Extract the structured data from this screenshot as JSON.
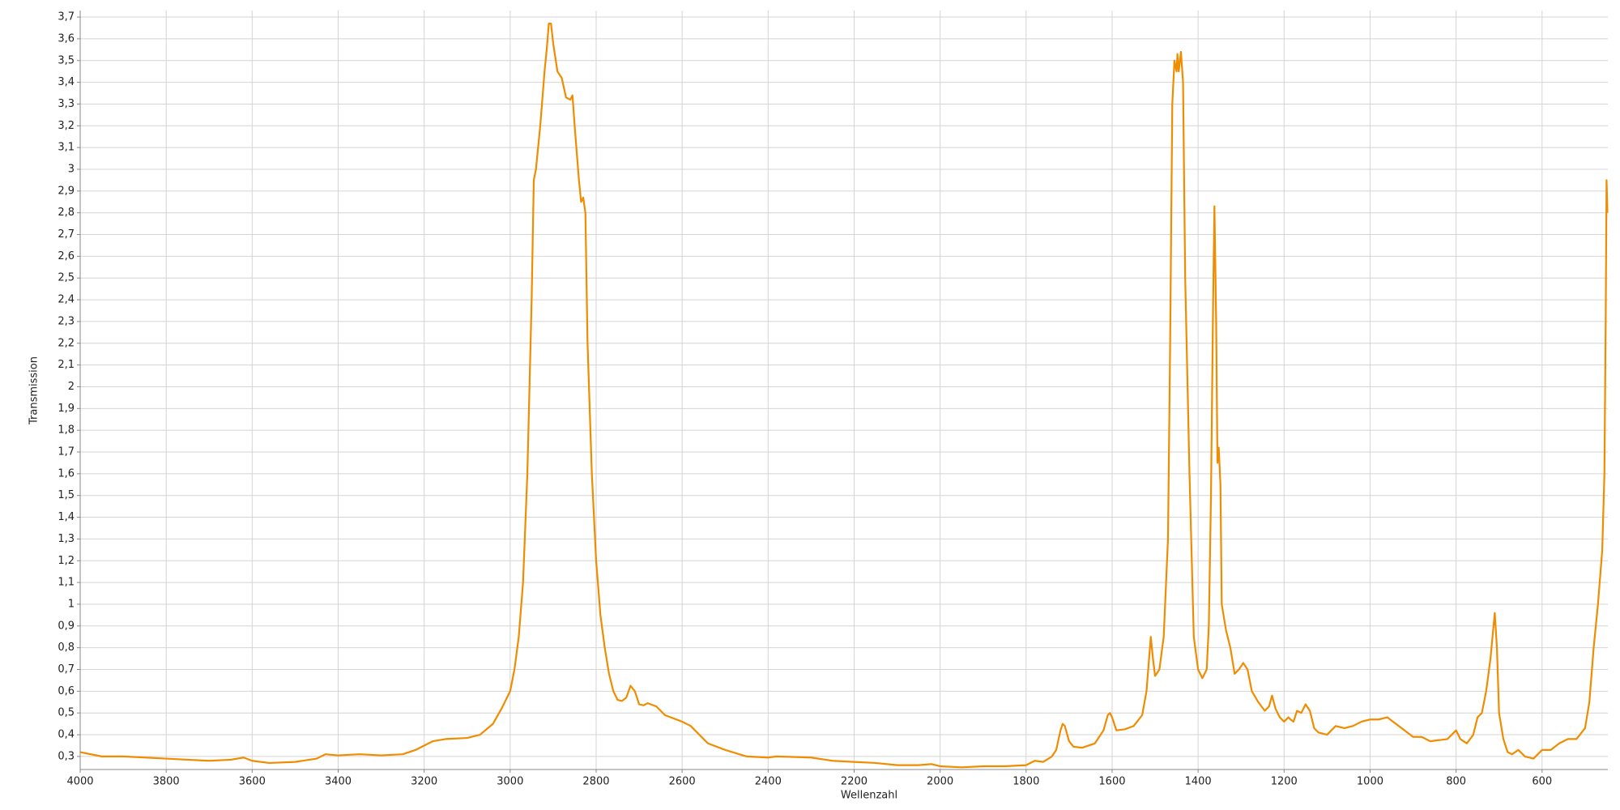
{
  "chart_data": {
    "type": "line",
    "x_label": "Wellenzahl",
    "y_label": "Transmission",
    "color": "#f08c00",
    "grid": true,
    "xlim": [
      4000,
      447
    ],
    "ylim": [
      0.24,
      3.73
    ],
    "xticks": [
      4000,
      3800,
      3600,
      3400,
      3200,
      3000,
      2800,
      2600,
      2400,
      2200,
      2000,
      1800,
      1600,
      1400,
      1200,
      1000,
      800,
      600
    ],
    "yticks": [
      {
        "value": 0.3,
        "label": "0,3"
      },
      {
        "value": 0.4,
        "label": "0,4"
      },
      {
        "value": 0.5,
        "label": "0,5"
      },
      {
        "value": 0.6,
        "label": "0,6"
      },
      {
        "value": 0.7,
        "label": "0,7"
      },
      {
        "value": 0.8,
        "label": "0,8"
      },
      {
        "value": 0.9,
        "label": "0,9"
      },
      1,
      {
        "value": 1.1,
        "label": "1,1"
      },
      {
        "value": 1.2,
        "label": "1,2"
      },
      {
        "value": 1.3,
        "label": "1,3"
      },
      {
        "value": 1.4,
        "label": "1,4"
      },
      {
        "value": 1.5,
        "label": "1,5"
      },
      {
        "value": 1.6,
        "label": "1,6"
      },
      {
        "value": 1.7,
        "label": "1,7"
      },
      {
        "value": 1.8,
        "label": "1,8"
      },
      {
        "value": 1.9,
        "label": "1,9"
      },
      2,
      {
        "value": 2.1,
        "label": "2,1"
      },
      {
        "value": 2.2,
        "label": "2,2"
      },
      {
        "value": 2.3,
        "label": "2,3"
      },
      {
        "value": 2.4,
        "label": "2,4"
      },
      {
        "value": 2.5,
        "label": "2,5"
      },
      {
        "value": 2.6,
        "label": "2,6"
      },
      {
        "value": 2.7,
        "label": "2,7"
      },
      {
        "value": 2.8,
        "label": "2,8"
      },
      {
        "value": 2.9,
        "label": "2,9"
      },
      3,
      {
        "value": 3.1,
        "label": "3,1"
      },
      {
        "value": 3.2,
        "label": "3,2"
      },
      {
        "value": 3.3,
        "label": "3,3"
      },
      {
        "value": 3.4,
        "label": "3,4"
      },
      {
        "value": 3.5,
        "label": "3,5"
      },
      {
        "value": 3.6,
        "label": "3,6"
      },
      {
        "value": 3.7,
        "label": "3,7"
      }
    ],
    "x": [
      4000,
      3950,
      3900,
      3800,
      3700,
      3650,
      3620,
      3600,
      3560,
      3500,
      3450,
      3430,
      3400,
      3350,
      3300,
      3250,
      3220,
      3180,
      3150,
      3100,
      3070,
      3040,
      3020,
      3000,
      2990,
      2980,
      2970,
      2960,
      2950,
      2945,
      2940,
      2930,
      2920,
      2915,
      2910,
      2905,
      2900,
      2890,
      2880,
      2870,
      2860,
      2855,
      2850,
      2840,
      2835,
      2830,
      2825,
      2820,
      2810,
      2800,
      2790,
      2780,
      2770,
      2760,
      2750,
      2740,
      2730,
      2720,
      2710,
      2700,
      2690,
      2680,
      2660,
      2640,
      2600,
      2580,
      2560,
      2540,
      2500,
      2450,
      2400,
      2380,
      2300,
      2250,
      2200,
      2150,
      2100,
      2050,
      2020,
      2000,
      1950,
      1900,
      1850,
      1800,
      1780,
      1760,
      1740,
      1730,
      1720,
      1715,
      1710,
      1700,
      1690,
      1670,
      1640,
      1620,
      1610,
      1605,
      1600,
      1590,
      1570,
      1550,
      1530,
      1520,
      1510,
      1505,
      1500,
      1490,
      1480,
      1470,
      1465,
      1460,
      1455,
      1450,
      1448,
      1445,
      1440,
      1435,
      1430,
      1420,
      1410,
      1400,
      1390,
      1380,
      1375,
      1370,
      1365,
      1362,
      1358,
      1355,
      1352,
      1348,
      1345,
      1335,
      1325,
      1315,
      1305,
      1295,
      1285,
      1275,
      1260,
      1245,
      1235,
      1228,
      1220,
      1210,
      1200,
      1190,
      1185,
      1178,
      1170,
      1160,
      1150,
      1140,
      1130,
      1120,
      1100,
      1080,
      1060,
      1040,
      1020,
      1000,
      980,
      960,
      940,
      920,
      900,
      880,
      860,
      840,
      820,
      800,
      790,
      775,
      760,
      750,
      740,
      730,
      720,
      710,
      705,
      700,
      690,
      680,
      670,
      655,
      640,
      620,
      600,
      580,
      560,
      540,
      520,
      500,
      490,
      480,
      470,
      460,
      455,
      452,
      450,
      448
    ],
    "values": [
      0.32,
      0.3,
      0.3,
      0.29,
      0.28,
      0.285,
      0.295,
      0.28,
      0.27,
      0.275,
      0.29,
      0.31,
      0.305,
      0.31,
      0.305,
      0.31,
      0.33,
      0.37,
      0.38,
      0.385,
      0.4,
      0.45,
      0.52,
      0.6,
      0.7,
      0.85,
      1.1,
      1.6,
      2.4,
      2.95,
      3.0,
      3.2,
      3.45,
      3.55,
      3.67,
      3.67,
      3.58,
      3.45,
      3.42,
      3.33,
      3.32,
      3.34,
      3.2,
      2.95,
      2.85,
      2.87,
      2.8,
      2.2,
      1.6,
      1.2,
      0.95,
      0.8,
      0.68,
      0.6,
      0.56,
      0.555,
      0.57,
      0.625,
      0.6,
      0.54,
      0.535,
      0.545,
      0.53,
      0.49,
      0.46,
      0.44,
      0.4,
      0.36,
      0.33,
      0.3,
      0.295,
      0.3,
      0.295,
      0.28,
      0.275,
      0.27,
      0.26,
      0.26,
      0.265,
      0.255,
      0.25,
      0.255,
      0.255,
      0.26,
      0.28,
      0.275,
      0.3,
      0.33,
      0.42,
      0.45,
      0.44,
      0.37,
      0.345,
      0.34,
      0.36,
      0.42,
      0.49,
      0.5,
      0.48,
      0.42,
      0.425,
      0.44,
      0.49,
      0.6,
      0.85,
      0.75,
      0.67,
      0.7,
      0.85,
      1.3,
      2.2,
      3.3,
      3.5,
      3.45,
      3.53,
      3.45,
      3.54,
      3.4,
      2.5,
      1.6,
      0.85,
      0.7,
      0.66,
      0.7,
      0.9,
      1.5,
      2.4,
      2.83,
      2.3,
      1.65,
      1.72,
      1.55,
      1.0,
      0.88,
      0.8,
      0.68,
      0.7,
      0.73,
      0.7,
      0.6,
      0.55,
      0.51,
      0.53,
      0.58,
      0.52,
      0.48,
      0.46,
      0.48,
      0.47,
      0.46,
      0.51,
      0.5,
      0.54,
      0.51,
      0.43,
      0.41,
      0.4,
      0.44,
      0.43,
      0.44,
      0.46,
      0.47,
      0.47,
      0.48,
      0.45,
      0.42,
      0.39,
      0.39,
      0.37,
      0.375,
      0.38,
      0.42,
      0.38,
      0.36,
      0.4,
      0.48,
      0.5,
      0.6,
      0.75,
      0.96,
      0.8,
      0.5,
      0.38,
      0.32,
      0.31,
      0.33,
      0.3,
      0.29,
      0.33,
      0.33,
      0.36,
      0.38,
      0.38,
      0.43,
      0.55,
      0.8,
      1.0,
      1.25,
      1.6,
      2.3,
      2.95,
      2.8
    ]
  }
}
